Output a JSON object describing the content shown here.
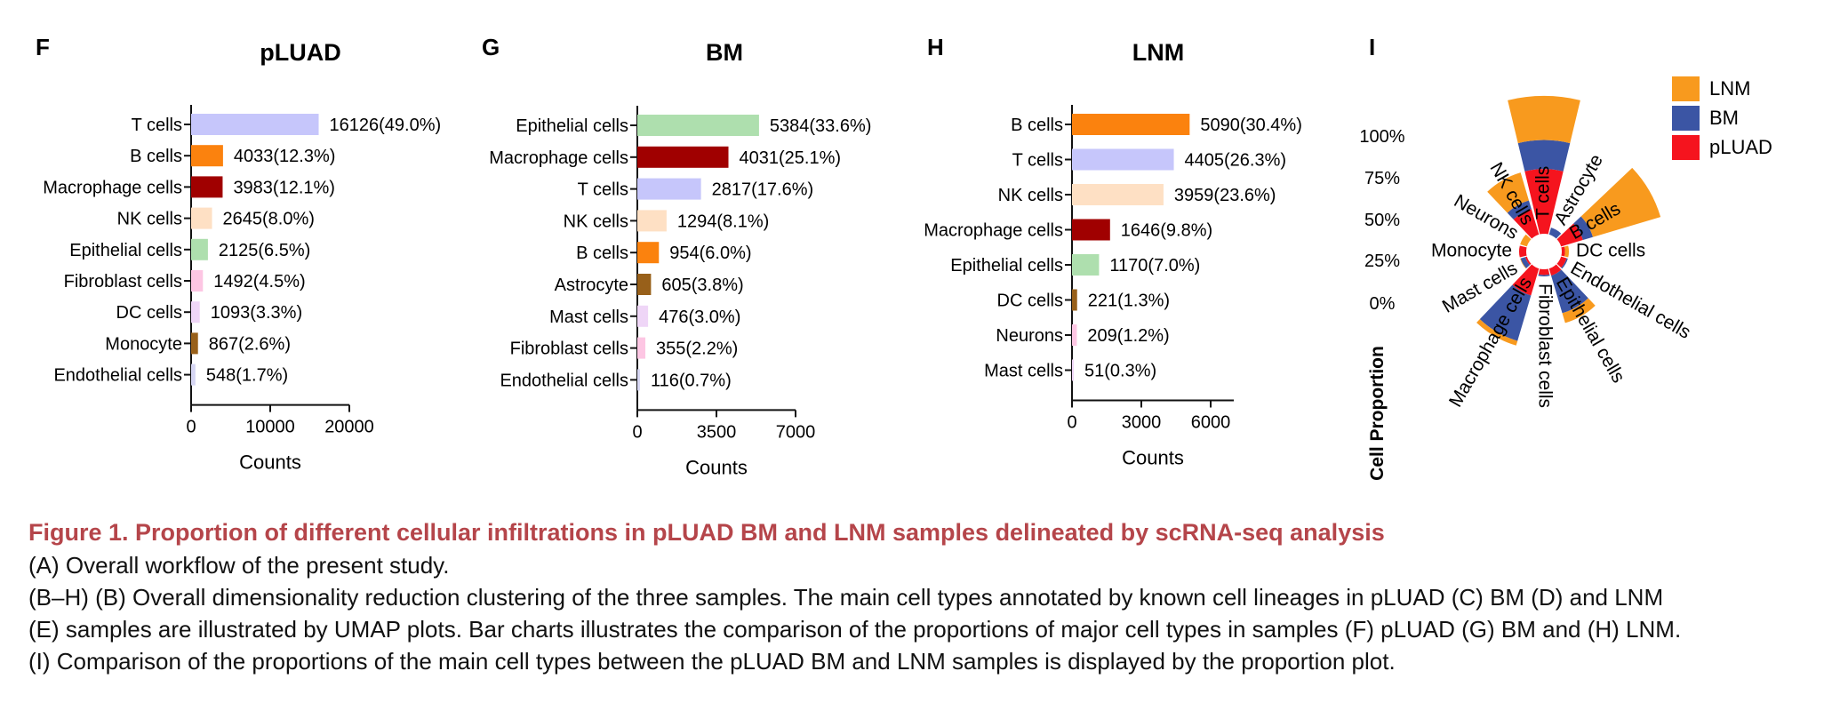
{
  "panels": {
    "F": {
      "letter": "F",
      "chart_data": {
        "type": "bar",
        "orientation": "horizontal",
        "title": "pLUAD",
        "xlabel": "Counts",
        "ylabel": "",
        "xlim": [
          0,
          20000
        ],
        "xticks": [
          "0",
          "10000",
          "20000"
        ],
        "categories": [
          "T cells",
          "B cells",
          "Macrophage cells",
          "NK cells",
          "Epithelial cells",
          "Fibroblast cells",
          "DC cells",
          "Monocyte",
          "Endothelial cells"
        ],
        "values": [
          16126,
          4033,
          3983,
          2645,
          2125,
          1492,
          1093,
          867,
          548
        ],
        "labels": [
          "16126(49.0%)",
          "4033(12.3%)",
          "3983(12.1%)",
          "2645(8.0%)",
          "2125(6.5%)",
          "1492(4.5%)",
          "1093(3.3%)",
          "867(2.6%)",
          "548(1.7%)"
        ],
        "colors": [
          "#c6c6fb",
          "#fb820e",
          "#a00000",
          "#fee0c4",
          "#aedfae",
          "#fdc6e3",
          "#efd6f7",
          "#98601a",
          "#d6d6f3"
        ]
      }
    },
    "G": {
      "letter": "G",
      "chart_data": {
        "type": "bar",
        "orientation": "horizontal",
        "title": "BM",
        "xlabel": "Counts",
        "ylabel": "",
        "xlim": [
          0,
          7000
        ],
        "xticks": [
          "0",
          "3500",
          "7000"
        ],
        "categories": [
          "Epithelial cells",
          "Macrophage cells",
          "T cells",
          "NK cells",
          "B cells",
          "Astrocyte",
          "Mast cells",
          "Fibroblast cells",
          "Endothelial cells"
        ],
        "values": [
          5384,
          4031,
          2817,
          1294,
          954,
          605,
          476,
          355,
          116
        ],
        "labels": [
          "5384(33.6%)",
          "4031(25.1%)",
          "2817(17.6%)",
          "1294(8.1%)",
          "954(6.0%)",
          "605(3.8%)",
          "476(3.0%)",
          "355(2.2%)",
          "116(0.7%)"
        ],
        "colors": [
          "#aedfae",
          "#a00000",
          "#c6c6fb",
          "#fee0c4",
          "#fb820e",
          "#98601a",
          "#efd6f7",
          "#fdc6e3",
          "#d6d6f3"
        ]
      }
    },
    "H": {
      "letter": "H",
      "chart_data": {
        "type": "bar",
        "orientation": "horizontal",
        "title": "LNM",
        "xlabel": "Counts",
        "ylabel": "",
        "xlim": [
          0,
          7000
        ],
        "xticks": [
          "0",
          "3000",
          "6000"
        ],
        "categories": [
          "B cells",
          "T cells",
          "NK cells",
          "Macrophage cells",
          "Epithelial cells",
          "DC cells",
          "Neurons",
          "Mast cells"
        ],
        "values": [
          5090,
          4405,
          3959,
          1646,
          1170,
          221,
          209,
          51
        ],
        "labels": [
          "5090(30.4%)",
          "4405(26.3%)",
          "3959(23.6%)",
          "1646(9.8%)",
          "1170(7.0%)",
          "221(1.3%)",
          "209(1.2%)",
          "51(0.3%)"
        ],
        "colors": [
          "#fb820e",
          "#c6c6fb",
          "#fee0c4",
          "#a00000",
          "#aedfae",
          "#98601a",
          "#fdc6e3",
          "#efd6f7"
        ]
      }
    },
    "I": {
      "letter": "I",
      "chart_data": {
        "type": "radial-stacked-bar",
        "ylabel": "Cell Proportion",
        "yticks": [
          "100%",
          "75%",
          "50%",
          "25%",
          "0%"
        ],
        "legend_position": "top-right",
        "series": [
          {
            "name": "LNM",
            "color": "#f89a1e"
          },
          {
            "name": "BM",
            "color": "#3b55a4"
          },
          {
            "name": "pLUAD",
            "color": "#f5141e"
          }
        ],
        "categories": [
          "T cells",
          "Astrocyte",
          "B cells",
          "DC cells",
          "Endothelial cells",
          "Epithelial cells",
          "Fibroblast cells",
          "Macrophage cells",
          "Mast cells",
          "Monocyte",
          "Neurons",
          "NK cells"
        ],
        "proportions": {
          "LNM": [
            0.32,
            0.0,
            0.68,
            0.54,
            0.0,
            0.18,
            0.0,
            0.06,
            0.07,
            0.0,
            1.0,
            0.45
          ],
          "BM": [
            0.21,
            1.0,
            0.1,
            0.0,
            0.18,
            0.69,
            0.19,
            0.59,
            0.68,
            0.0,
            0.0,
            0.14
          ],
          "pLUAD": [
            0.47,
            0.0,
            0.22,
            0.46,
            0.82,
            0.13,
            0.81,
            0.35,
            0.25,
            1.0,
            0.0,
            0.41
          ]
        },
        "bar_extent": [
          1.0,
          0.0,
          0.74,
          0.0,
          0.0,
          0.38,
          0.0,
          0.56,
          0.0,
          0.0,
          0.0,
          0.44
        ]
      }
    }
  },
  "caption": {
    "title": "Figure 1.  Proportion of different cellular infiltrations in pLUAD BM and LNM samples delineated by scRNA-seq analysis",
    "lines": [
      "(A) Overall workflow of the present study.",
      "(B–H) (B) Overall dimensionality reduction clustering of the three samples. The main cell types annotated by known cell lineages in pLUAD (C) BM (D) and LNM",
      "(E) samples are illustrated by UMAP plots. Bar charts illustrates the comparison of the proportions of major cell types in samples (F) pLUAD (G) BM and (H) LNM.",
      "(I) Comparison of the proportions of the main cell types between the pLUAD BM and LNM samples is displayed by the proportion plot."
    ]
  }
}
